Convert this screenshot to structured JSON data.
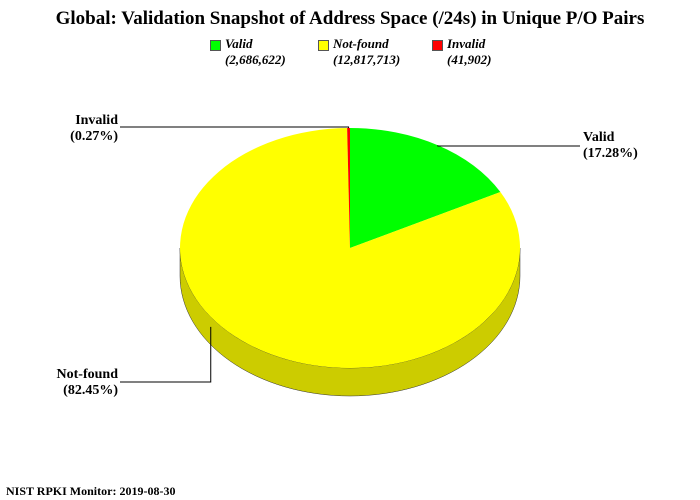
{
  "chart_data": {
    "type": "pie",
    "title": "Global: Validation Snapshot of Address Space (/24s) in Unique P/O Pairs",
    "legend_placement": "top",
    "slices": [
      {
        "name": "Valid",
        "count": "(2,686,622)",
        "value": 17.28,
        "percent_label": "(17.28%)",
        "color": "#00ff00",
        "side_color": "#00cc00"
      },
      {
        "name": "Not-found",
        "count": "(12,817,713)",
        "value": 82.45,
        "percent_label": "(82.45%)",
        "color": "#ffff00",
        "side_color": "#cccc00"
      },
      {
        "name": "Invalid",
        "count": "(41,902)",
        "value": 0.27,
        "percent_label": "(0.27%)",
        "color": "#ff0000",
        "side_color": "#cc0000"
      }
    ]
  },
  "footer": "NIST RPKI Monitor: 2019-08-30"
}
